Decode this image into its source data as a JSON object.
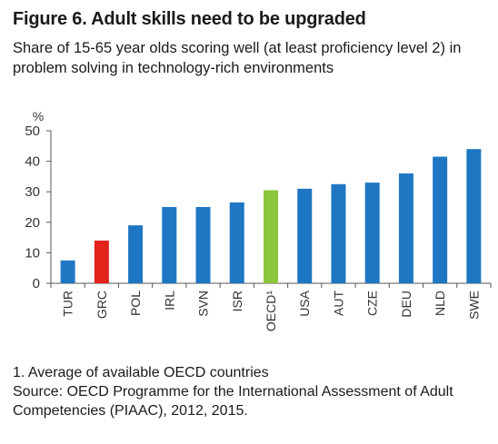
{
  "header": {
    "title": "Figure 6. Adult skills need to be upgraded",
    "subtitle": "Share of 15-65 year olds scoring well (at least proficiency level 2) in problem solving in technology-rich environments"
  },
  "notes": {
    "footnote": "1. Average of available OECD countries",
    "source_line1": "Source: OECD Programme for the International Assessment of Adult",
    "source_line2": "Competencies (PIAAC), 2012, 2015."
  },
  "chart_data": {
    "type": "bar",
    "categories": [
      "TUR",
      "GRC",
      "POL",
      "IRL",
      "SVN",
      "ISR",
      "OECD¹",
      "USA",
      "AUT",
      "CZE",
      "DEU",
      "NLD",
      "SWE"
    ],
    "values": [
      7.5,
      14,
      19,
      25,
      25,
      26.5,
      30.5,
      31,
      32.5,
      33,
      36,
      41.5,
      44
    ],
    "ylabel": "%",
    "ylim": [
      0,
      50
    ],
    "yticks": [
      0,
      10,
      20,
      30,
      40,
      50
    ],
    "grid": false,
    "colors": {
      "default": "#1f77c4",
      "highlight": "#e2231a",
      "average": "#8cc63f"
    },
    "bar_colors": [
      "default",
      "highlight",
      "default",
      "default",
      "default",
      "default",
      "average",
      "default",
      "default",
      "default",
      "default",
      "default",
      "default"
    ]
  }
}
